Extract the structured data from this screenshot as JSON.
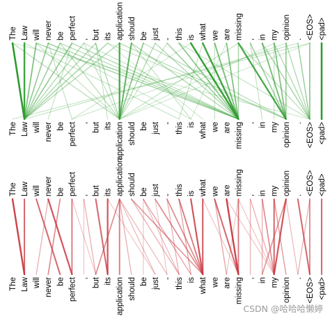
{
  "tokens": [
    "The",
    "Law",
    "will",
    "never",
    "be",
    "perfect",
    ",",
    "but",
    "its",
    "application",
    "should",
    "be",
    "just",
    "-",
    "this",
    "is",
    "what",
    "we",
    "are",
    "missing",
    ",",
    "in",
    "my",
    "opinion",
    ".",
    "<EOS>",
    "<pad>"
  ],
  "panels": [
    {
      "name": "green",
      "color": "#2e9b2e",
      "edges": [
        [
          0,
          1,
          1.0
        ],
        [
          1,
          1,
          0.9
        ],
        [
          2,
          1,
          0.55
        ],
        [
          3,
          1,
          0.45
        ],
        [
          4,
          1,
          0.4
        ],
        [
          5,
          1,
          0.45
        ],
        [
          6,
          1,
          0.3
        ],
        [
          7,
          1,
          0.3
        ],
        [
          8,
          1,
          0.35
        ],
        [
          9,
          1,
          0.3
        ],
        [
          0,
          9,
          0.25
        ],
        [
          2,
          9,
          0.2
        ],
        [
          4,
          9,
          0.25
        ],
        [
          6,
          9,
          0.2
        ],
        [
          7,
          9,
          0.3
        ],
        [
          9,
          9,
          0.85
        ],
        [
          10,
          9,
          0.7
        ],
        [
          11,
          9,
          0.5
        ],
        [
          12,
          9,
          0.3
        ],
        [
          2,
          19,
          0.35
        ],
        [
          3,
          19,
          0.3
        ],
        [
          4,
          19,
          0.25
        ],
        [
          5,
          19,
          0.3
        ],
        [
          10,
          19,
          0.3
        ],
        [
          13,
          19,
          0.4
        ],
        [
          14,
          19,
          0.5
        ],
        [
          15,
          19,
          0.95
        ],
        [
          16,
          19,
          0.9
        ],
        [
          17,
          19,
          0.6
        ],
        [
          18,
          19,
          0.55
        ],
        [
          19,
          19,
          0.35
        ],
        [
          21,
          23,
          0.6
        ],
        [
          22,
          23,
          0.55
        ],
        [
          23,
          23,
          0.45
        ],
        [
          19,
          23,
          0.85
        ],
        [
          20,
          23,
          0.4
        ],
        [
          9,
          23,
          0.25
        ],
        [
          11,
          23,
          0.25
        ],
        [
          21,
          25,
          0.35
        ],
        [
          22,
          25,
          0.3
        ],
        [
          23,
          25,
          0.3
        ],
        [
          24,
          25,
          0.4
        ],
        [
          25,
          25,
          0.5
        ],
        [
          19,
          25,
          0.25
        ],
        [
          14,
          25,
          0.2
        ],
        [
          26,
          26,
          1.0
        ],
        [
          25,
          0,
          0.2
        ],
        [
          24,
          1,
          0.2
        ],
        [
          23,
          5,
          0.15
        ],
        [
          19,
          9,
          0.2
        ],
        [
          25,
          9,
          0.15
        ],
        [
          15,
          5,
          0.15
        ],
        [
          13,
          9,
          0.2
        ],
        [
          22,
          9,
          0.15
        ],
        [
          1,
          14,
          0.2
        ],
        [
          3,
          15,
          0.15
        ],
        [
          8,
          16,
          0.15
        ],
        [
          10,
          15,
          0.2
        ],
        [
          12,
          19,
          0.3
        ],
        [
          6,
          19,
          0.2
        ],
        [
          8,
          23,
          0.2
        ],
        [
          0,
          25,
          0.15
        ],
        [
          3,
          5,
          0.2
        ],
        [
          5,
          3,
          0.2
        ],
        [
          7,
          8,
          0.2
        ],
        [
          16,
          14,
          0.2
        ],
        [
          17,
          17,
          0.2
        ],
        [
          20,
          21,
          0.2
        ],
        [
          22,
          22,
          0.2
        ],
        [
          18,
          15,
          0.15
        ]
      ]
    },
    {
      "name": "red",
      "color": "#c8323a",
      "edges": [
        [
          0,
          1,
          0.9
        ],
        [
          1,
          1,
          0.7
        ],
        [
          2,
          4,
          0.7
        ],
        [
          3,
          5,
          0.8
        ],
        [
          4,
          3,
          0.5
        ],
        [
          5,
          5,
          0.6
        ],
        [
          3,
          2,
          0.3
        ],
        [
          7,
          8,
          0.7
        ],
        [
          8,
          8,
          0.8
        ],
        [
          9,
          7,
          0.5
        ],
        [
          9,
          9,
          0.6
        ],
        [
          9,
          10,
          0.3
        ],
        [
          10,
          14,
          0.3
        ],
        [
          11,
          15,
          0.35
        ],
        [
          12,
          16,
          0.5
        ],
        [
          10,
          16,
          0.45
        ],
        [
          13,
          16,
          0.5
        ],
        [
          14,
          16,
          0.6
        ],
        [
          15,
          16,
          0.8
        ],
        [
          16,
          16,
          0.75
        ],
        [
          14,
          15,
          0.35
        ],
        [
          13,
          14,
          0.3
        ],
        [
          17,
          19,
          0.7
        ],
        [
          18,
          19,
          0.9
        ],
        [
          19,
          19,
          0.6
        ],
        [
          17,
          18,
          0.35
        ],
        [
          21,
          22,
          0.5
        ],
        [
          22,
          22,
          0.7
        ],
        [
          23,
          22,
          0.8
        ],
        [
          23,
          21,
          0.45
        ],
        [
          22,
          23,
          0.4
        ],
        [
          20,
          22,
          0.3
        ],
        [
          21,
          21,
          0.3
        ],
        [
          20,
          20,
          0.3
        ],
        [
          24,
          25,
          0.7
        ],
        [
          25,
          25,
          0.55
        ],
        [
          26,
          26,
          0.7
        ],
        [
          25,
          24,
          0.3
        ],
        [
          6,
          7,
          0.3
        ],
        [
          5,
          7,
          0.2
        ],
        [
          9,
          12,
          0.25
        ],
        [
          9,
          13,
          0.25
        ],
        [
          8,
          12,
          0.2
        ],
        [
          11,
          14,
          0.25
        ],
        [
          12,
          13,
          0.2
        ],
        [
          11,
          11,
          0.2
        ],
        [
          19,
          22,
          0.2
        ],
        [
          18,
          22,
          0.2
        ],
        [
          23,
          24,
          0.25
        ],
        [
          6,
          6,
          0.2
        ],
        [
          16,
          19,
          0.2
        ],
        [
          19,
          18,
          0.2
        ]
      ]
    }
  ],
  "watermark": "CSDN @哈哈哈懒婷"
}
